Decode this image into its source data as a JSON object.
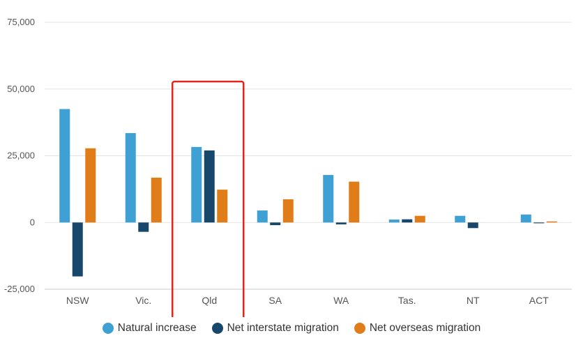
{
  "chart_data": {
    "type": "bar",
    "categories": [
      "NSW",
      "Vic.",
      "Qld",
      "SA",
      "WA",
      "Tas.",
      "NT",
      "ACT"
    ],
    "series": [
      {
        "name": "Natural increase",
        "color": "#3fa0d4",
        "values": [
          42500,
          33500,
          28300,
          4500,
          17800,
          1100,
          2500,
          3000
        ]
      },
      {
        "name": "Net interstate migration",
        "color": "#17486b",
        "values": [
          -20200,
          -3500,
          27000,
          -1000,
          -700,
          1200,
          -2100,
          -300
        ]
      },
      {
        "name": "Net overseas migration",
        "color": "#e07d18",
        "values": [
          27800,
          16800,
          12300,
          8700,
          15300,
          2500,
          0,
          400
        ]
      }
    ],
    "ylim": [
      -25000,
      75000
    ],
    "yticks": [
      "-25,000",
      "0",
      "25,000",
      "50,000",
      "75,000"
    ],
    "ytick_values": [
      -25000,
      0,
      25000,
      50000,
      75000
    ],
    "grid": true,
    "legend_position": "bottom",
    "highlight": {
      "category": "Qld",
      "color": "#e0261c"
    }
  }
}
